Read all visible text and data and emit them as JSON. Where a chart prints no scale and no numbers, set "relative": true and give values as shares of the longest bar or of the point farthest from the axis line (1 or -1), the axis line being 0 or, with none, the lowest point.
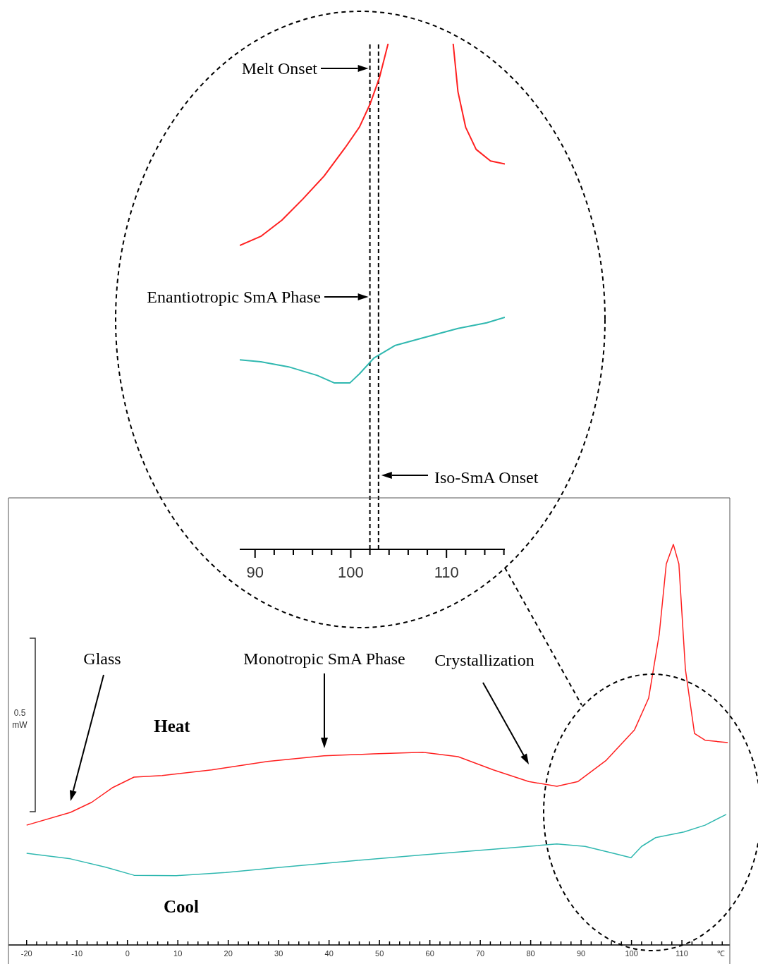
{
  "chart_data": [
    {
      "type": "line",
      "relative": true,
      "xlabel": "℃",
      "tick_labels": "x",
      "marker": "none",
      "xlim": [
        -23.6,
        119.5
      ],
      "xticks": [
        -20,
        {
          "value": -18,
          "label": null
        },
        {
          "value": -16,
          "label": null
        },
        {
          "value": -14,
          "label": null
        },
        {
          "value": -12,
          "label": null
        },
        -10,
        {
          "value": -8,
          "label": null
        },
        {
          "value": -6,
          "label": null
        },
        {
          "value": -4,
          "label": null
        },
        {
          "value": -2,
          "label": null
        },
        0,
        {
          "value": 2,
          "label": null
        },
        {
          "value": 4,
          "label": null
        },
        {
          "value": 6,
          "label": null
        },
        {
          "value": 8,
          "label": null
        },
        10,
        {
          "value": 12,
          "label": null
        },
        {
          "value": 14,
          "label": null
        },
        {
          "value": 16,
          "label": null
        },
        {
          "value": 18,
          "label": null
        },
        20,
        {
          "value": 22,
          "label": null
        },
        {
          "value": 24,
          "label": null
        },
        {
          "value": 26,
          "label": null
        },
        {
          "value": 28,
          "label": null
        },
        30,
        {
          "value": 32,
          "label": null
        },
        {
          "value": 34,
          "label": null
        },
        {
          "value": 36,
          "label": null
        },
        {
          "value": 38,
          "label": null
        },
        40,
        {
          "value": 42,
          "label": null
        },
        {
          "value": 44,
          "label": null
        },
        {
          "value": 46,
          "label": null
        },
        {
          "value": 48,
          "label": null
        },
        50,
        {
          "value": 52,
          "label": null
        },
        {
          "value": 54,
          "label": null
        },
        {
          "value": 56,
          "label": null
        },
        {
          "value": 58,
          "label": null
        },
        60,
        {
          "value": 62,
          "label": null
        },
        {
          "value": 64,
          "label": null
        },
        {
          "value": 66,
          "label": null
        },
        {
          "value": 68,
          "label": null
        },
        70,
        {
          "value": 72,
          "label": null
        },
        {
          "value": 74,
          "label": null
        },
        {
          "value": 76,
          "label": null
        },
        {
          "value": 78,
          "label": null
        },
        80,
        {
          "value": 82,
          "label": null
        },
        {
          "value": 84,
          "label": null
        },
        {
          "value": 86,
          "label": null
        },
        {
          "value": 88,
          "label": null
        },
        90,
        {
          "value": 92,
          "label": null
        },
        {
          "value": 94,
          "label": null
        },
        {
          "value": 96,
          "label": null
        },
        {
          "value": 98,
          "label": null
        },
        100,
        {
          "value": 102,
          "label": null
        },
        {
          "value": 104,
          "label": null
        },
        {
          "value": 106,
          "label": null
        },
        {
          "value": 108,
          "label": null
        },
        110,
        {
          "value": 112,
          "label": null
        },
        {
          "value": 114,
          "label": null
        },
        {
          "value": 116,
          "label": null
        },
        {
          "value": 118,
          "label": null
        }
      ],
      "series": [
        {
          "name": "Heat",
          "color": "#ff2020",
          "x": [
            -20,
            -11.3,
            -7.1,
            -2.9,
            1.3,
            6.9,
            16.7,
            27.8,
            39.0,
            48.8,
            58.6,
            65.6,
            72.6,
            79.6,
            85.2,
            89.4,
            95.0,
            100.6,
            103.4,
            105.5,
            106.9,
            108.3,
            109.4,
            110.7,
            112.5,
            114.6,
            119.1
          ],
          "values": [
            0.299,
            0.331,
            0.356,
            0.393,
            0.419,
            0.423,
            0.437,
            0.458,
            0.472,
            0.477,
            0.481,
            0.47,
            0.437,
            0.408,
            0.396,
            0.408,
            0.461,
            0.537,
            0.616,
            0.775,
            0.951,
            1.0,
            0.951,
            0.687,
            0.528,
            0.511,
            0.505
          ]
        },
        {
          "name": "Cool",
          "color": "#30b8b0",
          "x": [
            -20,
            -11.3,
            -4.3,
            1.3,
            9.7,
            19.5,
            30.6,
            44.6,
            58.6,
            72.6,
            85.2,
            90.8,
            96.4,
            99.9,
            102.0,
            104.8,
            110.4,
            114.6,
            118.8
          ],
          "values": [
            0.229,
            0.215,
            0.194,
            0.174,
            0.173,
            0.181,
            0.194,
            0.21,
            0.225,
            0.239,
            0.252,
            0.246,
            0.229,
            0.218,
            0.246,
            0.268,
            0.282,
            0.299,
            0.326
          ]
        }
      ],
      "annotations": [
        "Glass",
        "Monotropic SmA Phase",
        "Crystallization",
        "0.5 mW"
      ]
    },
    {
      "type": "line",
      "relative": true,
      "tick_labels": "x",
      "marker": "none",
      "xlim": [
        88.4,
        116.1
      ],
      "xticks": [
        90,
        {
          "value": 92,
          "label": null
        },
        {
          "value": 94,
          "label": null
        },
        {
          "value": 96,
          "label": null
        },
        {
          "value": 98,
          "label": null
        },
        100,
        {
          "value": 102,
          "label": null
        },
        {
          "value": 104,
          "label": null
        },
        {
          "value": 106,
          "label": null
        },
        {
          "value": 108,
          "label": null
        },
        110,
        {
          "value": 112,
          "label": null
        },
        {
          "value": 114,
          "label": null
        },
        {
          "value": 116,
          "label": null
        }
      ],
      "series": [
        {
          "color": "#ff2020",
          "x": [
            88.4,
            90.6,
            92.8,
            95.0,
            97.2,
            99.4,
            100.9,
            102.0,
            103.0,
            103.9,
            107.3,
            110.7,
            111.2,
            112.0,
            113.1,
            114.6,
            116.1
          ],
          "values": [
            0.601,
            0.619,
            0.651,
            0.693,
            0.738,
            0.794,
            0.835,
            0.88,
            0.933,
            1.0,
            null,
            1.0,
            0.905,
            0.835,
            0.791,
            0.768,
            0.762
          ]
        },
        {
          "color": "#30b8b0",
          "x": [
            88.4,
            90.6,
            93.5,
            96.5,
            98.3,
            99.9,
            100.9,
            102.4,
            104.6,
            107.5,
            111.2,
            114.2,
            116.1
          ],
          "values": [
            0.375,
            0.371,
            0.361,
            0.344,
            0.329,
            0.329,
            0.347,
            0.378,
            0.403,
            0.418,
            0.437,
            0.448,
            0.459
          ]
        }
      ],
      "ref_lines": [
        {
          "axis": "x",
          "value": 102.0,
          "line_style": "dashed",
          "color": "#000000"
        },
        {
          "axis": "x",
          "value": 102.9,
          "line_style": "dashed",
          "color": "#000000"
        }
      ],
      "annotations": [
        "Melt Onset",
        "Enantiotropic SmA Phase",
        "Iso-SmA Onset"
      ]
    }
  ]
}
